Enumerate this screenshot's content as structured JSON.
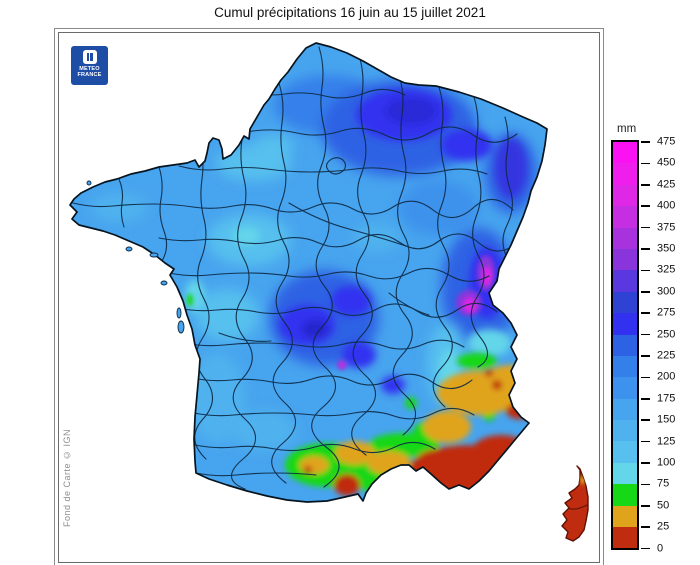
{
  "title": "Cumul précipitations 16 juin au 15 juillet 2021",
  "logo": {
    "line1": "METEO",
    "line2": "FRANCE"
  },
  "attribution": "Fond de Carte © IGN",
  "legend": {
    "unit": "mm",
    "tick_labels": [
      "475",
      "450",
      "425",
      "400",
      "375",
      "350",
      "325",
      "300",
      "275",
      "250",
      "225",
      "200",
      "175",
      "150",
      "125",
      "100",
      "75",
      "50",
      "25",
      "0"
    ],
    "cell_colors_top_to_bottom": [
      "#FB12F3",
      "#EF1EEC",
      "#DE28E6",
      "#C62EE2",
      "#A832DE",
      "#8A34DC",
      "#5A38E0",
      "#2F42D4",
      "#3231F0",
      "#2E62E4",
      "#3480EA",
      "#3C92EC",
      "#47A4EE",
      "#4FB2EE",
      "#57C0EE",
      "#63D6EA",
      "#16D816",
      "#E0A41C",
      "#C02C10"
    ]
  },
  "map": {
    "country": "France (métropole + Corse)",
    "type": "précipitations cumulées interpolées par département",
    "zones": [
      {
        "area": "Majeure partie du territoire",
        "cumul_mm": "100-225"
      },
      {
        "area": "Nord-Est (Champagne / Lorraine)",
        "cumul_mm": "250-325"
      },
      {
        "area": "Massif central",
        "cumul_mm": "225-300"
      },
      {
        "area": "Frontière Est (Jura / Savoie)",
        "cumul_mm": "325-450"
      },
      {
        "area": "Moyenne vallée du Rhône",
        "cumul_mm": "75-125"
      },
      {
        "area": "Languedoc-Roussillon",
        "cumul_mm": "25-75"
      },
      {
        "area": "Provence / Côte d'Azur",
        "cumul_mm": "0-50"
      },
      {
        "area": "Corse",
        "cumul_mm": "0-25"
      }
    ]
  },
  "colors": {
    "sea": "#ffffff",
    "boundary": "#0E2A45",
    "coast_outline": "#06141F",
    "frame": "#6b6b6b",
    "logo_blue": "#1e4da6"
  }
}
